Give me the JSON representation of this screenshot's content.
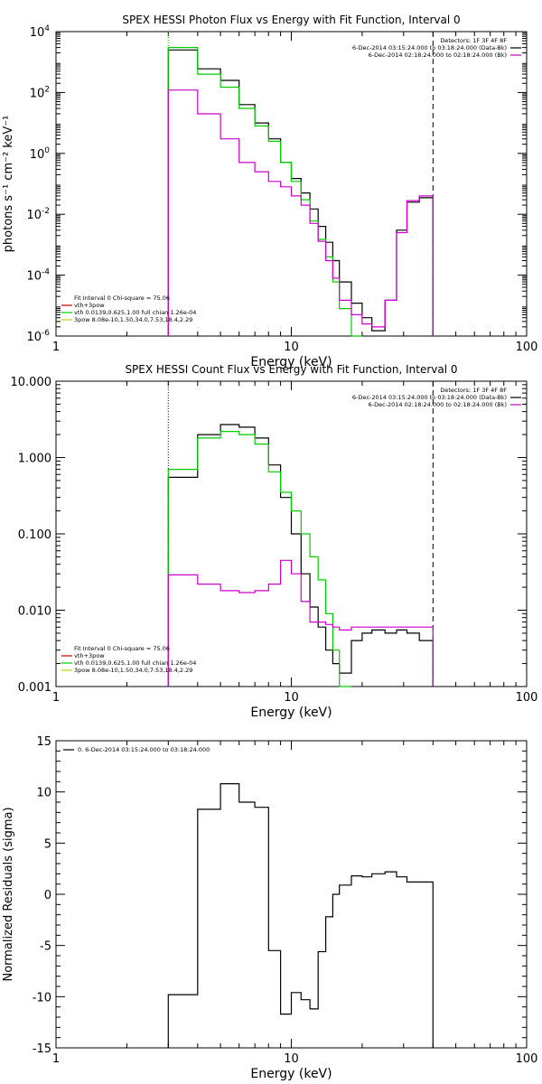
{
  "chart_data": [
    {
      "type": "line",
      "title": "SPEX HESSI Photon Flux vs Energy with Fit Function, Interval 0",
      "xlabel": "Energy (keV)",
      "ylabel": "photons s⁻¹ cm⁻² keV⁻¹",
      "xscale": "log",
      "yscale": "log",
      "xlim": [
        1,
        100
      ],
      "ylim": [
        1e-06,
        10000.0
      ],
      "x_ticks": [
        {
          "v": 1,
          "label": "1"
        },
        {
          "v": 10,
          "label": "10"
        },
        {
          "v": 100,
          "label": "100"
        }
      ],
      "y_ticks": [
        {
          "v": 1e-06,
          "base": "10",
          "exp": "-6"
        },
        {
          "v": 0.0001,
          "base": "10",
          "exp": "-4"
        },
        {
          "v": 0.01,
          "base": "10",
          "exp": "-2"
        },
        {
          "v": 1,
          "base": "10",
          "exp": "0"
        },
        {
          "v": 100,
          "base": "10",
          "exp": "2"
        },
        {
          "v": 10000,
          "base": "10",
          "exp": "4"
        }
      ],
      "grid": false,
      "bin_edges": [
        3,
        4,
        5,
        6,
        7,
        8,
        9,
        10,
        11,
        12,
        13,
        14,
        15,
        16,
        18,
        20,
        22,
        25,
        28,
        31,
        35,
        40
      ],
      "vertical_lines": [
        {
          "x": 3,
          "style": "dotted",
          "color": "#00cc00"
        },
        {
          "x": 40,
          "style": "dashed",
          "color": "#000000"
        }
      ],
      "legend_topright": {
        "lines": [
          {
            "text": "Detectors: 1F 3F 4F 8F",
            "color": ""
          },
          {
            "text": "6-Dec-2014 03:15:24.000 to 03:18:24.000 (Data-Bk)",
            "color": "#000000"
          },
          {
            "text": "6-Dec-2014 02:18:24.000 to 02:18:24.000 (Bk)",
            "color": "#cc00cc"
          }
        ]
      },
      "legend_bottomleft": {
        "lines": [
          {
            "text": "Fit Interval 0   Chi-square = 75.06",
            "color": ""
          },
          {
            "text": "vth+3pow",
            "color": "#cc0000"
          },
          {
            "text": "vth 0.0139,0.625,1.00  full chian 1.26e-04",
            "color": "#00cc00"
          },
          {
            "text": "3pow 8.08e-10,1.50,34.0,7.53,18.4,2.29",
            "color": "#cccc00"
          }
        ]
      },
      "series": [
        {
          "color": "#000000",
          "values": [
            2500,
            600,
            250,
            40,
            10,
            3,
            0.5,
            0.15,
            0.05,
            0.015,
            0.004,
            0.0012,
            0.0003,
            6e-05,
            1.2e-05,
            4e-06,
            1.5e-06,
            1.5e-05,
            0.003,
            0.025,
            0.035
          ]
        },
        {
          "color": "#00cc00",
          "values": [
            3000,
            400,
            150,
            30,
            8,
            2.5,
            0.5,
            0.12,
            0.03,
            0.006,
            0.0015,
            0.0004,
            6e-05,
            8e-06,
            1e-06,
            null,
            null,
            null,
            null,
            null,
            null
          ]
        },
        {
          "color": "#cc00cc",
          "values": [
            120,
            20,
            3,
            0.5,
            0.25,
            0.12,
            0.08,
            0.04,
            0.02,
            0.005,
            0.0013,
            0.0003,
            8e-05,
            1.5e-05,
            5e-06,
            2.5e-06,
            2e-06,
            1.5e-05,
            0.0025,
            0.028,
            0.04
          ]
        }
      ]
    },
    {
      "type": "line",
      "title": "SPEX HESSI Count Flux vs Energy with Fit Function, Interval 0",
      "xlabel": "Energy (keV)",
      "ylabel": "",
      "xscale": "log",
      "yscale": "log",
      "xlim": [
        1,
        100
      ],
      "ylim": [
        0.001,
        10
      ],
      "x_ticks": [
        {
          "v": 1,
          "label": "1"
        },
        {
          "v": 10,
          "label": "10"
        },
        {
          "v": 100,
          "label": "100"
        }
      ],
      "y_ticks": [
        {
          "v": 0.001,
          "label": "0.001"
        },
        {
          "v": 0.01,
          "label": "0.010"
        },
        {
          "v": 0.1,
          "label": "0.100"
        },
        {
          "v": 1,
          "label": "1.000"
        },
        {
          "v": 10,
          "label": "10.000"
        }
      ],
      "grid": false,
      "bin_edges": [
        3,
        4,
        5,
        6,
        7,
        8,
        9,
        10,
        11,
        12,
        13,
        14,
        15,
        16,
        18,
        20,
        22,
        25,
        28,
        31,
        35,
        40
      ],
      "vertical_lines": [
        {
          "x": 3,
          "style": "dotted",
          "color": "#000000"
        },
        {
          "x": 40,
          "style": "dashed",
          "color": "#000000"
        }
      ],
      "legend_topright": {
        "lines": [
          {
            "text": "Detectors: 1F 3F 4F 8F",
            "color": ""
          },
          {
            "text": "6-Dec-2014 03:15:24.000 to 03:18:24.000 (Data-Bk)",
            "color": "#000000"
          },
          {
            "text": "6-Dec-2014 02:18:24.000 to 02:18:24.000 (Bk)",
            "color": "#cc00cc"
          }
        ]
      },
      "legend_bottomleft": {
        "lines": [
          {
            "text": "Fit Interval 0   Chi-square = 75.06",
            "color": ""
          },
          {
            "text": "vth+3pow",
            "color": "#cc0000"
          },
          {
            "text": "vth 0.0139,0.625,1.00  full chian 1.26e-04",
            "color": "#00cc00"
          },
          {
            "text": "3pow 8.08e-10,1.50,34.0,7.53,18.4,2.29",
            "color": "#cccc00"
          }
        ]
      },
      "series": [
        {
          "color": "#000000",
          "values": [
            0.55,
            2.0,
            2.7,
            2.5,
            1.8,
            0.8,
            0.3,
            0.1,
            0.03,
            0.011,
            0.006,
            0.003,
            0.002,
            0.0015,
            0.004,
            0.005,
            0.0055,
            0.005,
            0.0055,
            0.005,
            0.004
          ]
        },
        {
          "color": "#00cc00",
          "values": [
            0.7,
            1.8,
            2.2,
            2.0,
            1.5,
            0.65,
            0.35,
            0.2,
            0.1,
            0.05,
            0.025,
            0.009,
            0.003,
            0.001,
            null,
            null,
            null,
            null,
            null,
            null,
            null
          ]
        },
        {
          "color": "#cc00cc",
          "values": [
            0.029,
            0.022,
            0.018,
            0.017,
            0.018,
            0.022,
            0.045,
            0.03,
            0.013,
            0.007,
            0.007,
            0.0065,
            0.006,
            0.0055,
            0.006,
            0.006,
            0.006,
            0.006,
            0.006,
            0.006,
            0.006
          ]
        }
      ]
    },
    {
      "type": "line",
      "title": "",
      "xlabel": "Energy (keV)",
      "ylabel": "Normalized Residuals (sigma)",
      "xscale": "log",
      "yscale": "linear",
      "xlim": [
        1,
        100
      ],
      "ylim": [
        -15,
        15
      ],
      "x_ticks": [
        {
          "v": 1,
          "label": "1"
        },
        {
          "v": 10,
          "label": "10"
        },
        {
          "v": 100,
          "label": "100"
        }
      ],
      "y_ticks": [
        {
          "v": -15,
          "label": "-15"
        },
        {
          "v": -10,
          "label": "-10"
        },
        {
          "v": -5,
          "label": "-5"
        },
        {
          "v": 0,
          "label": "0"
        },
        {
          "v": 5,
          "label": "5"
        },
        {
          "v": 10,
          "label": "10"
        },
        {
          "v": 15,
          "label": "15"
        }
      ],
      "grid": false,
      "bin_edges": [
        3,
        4,
        5,
        6,
        7,
        8,
        9,
        10,
        11,
        12,
        13,
        14,
        15,
        16,
        18,
        20,
        22,
        25,
        28,
        31,
        35,
        40
      ],
      "vertical_lines": [],
      "legend_topleft": {
        "lines": [
          {
            "text": "0.  6-Dec-2014 03:15:24.000 to 03:18:24.000",
            "color": "#000000"
          }
        ]
      },
      "series": [
        {
          "color": "#000000",
          "values": [
            -9.8,
            8.3,
            10.8,
            9.0,
            8.5,
            -5.5,
            -11.7,
            -9.6,
            -10.3,
            -11.2,
            -5.6,
            -2.2,
            0.0,
            0.9,
            1.8,
            1.7,
            2.0,
            2.2,
            1.7,
            1.2,
            1.2
          ]
        }
      ]
    }
  ]
}
